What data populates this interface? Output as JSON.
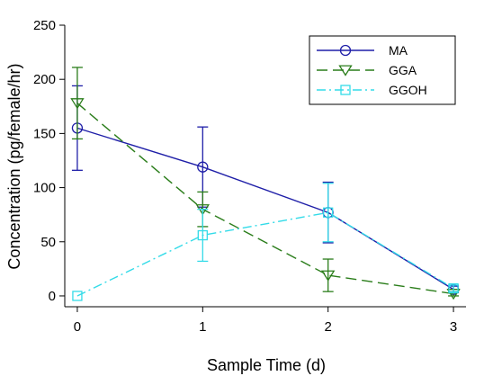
{
  "chart_data": {
    "type": "line",
    "title": "",
    "xlabel": "Sample Time (d)",
    "ylabel": "Concentration (pg/female/hr)",
    "xlim": [
      -0.1,
      3.1
    ],
    "ylim": [
      -10,
      250
    ],
    "xticks": [
      0,
      1,
      2,
      3
    ],
    "yticks": [
      0,
      50,
      100,
      150,
      200,
      250
    ],
    "grid": false,
    "legend_position": "top-right",
    "x": [
      0,
      1,
      2,
      3
    ],
    "series": [
      {
        "name": "MA",
        "values": [
          155,
          119,
          77,
          6
        ],
        "error": [
          39,
          37,
          28,
          3
        ],
        "color": "#1f1fa8",
        "linestyle": "solid",
        "marker": "circle"
      },
      {
        "name": "GGA",
        "values": [
          178,
          80,
          19,
          2
        ],
        "error": [
          33,
          16,
          15,
          2
        ],
        "color": "#2a7d1a",
        "linestyle": "dashed",
        "marker": "triangle-down"
      },
      {
        "name": "GGOH",
        "values": [
          0,
          56,
          77,
          7
        ],
        "error": [
          0,
          24,
          27,
          3
        ],
        "color": "#33dbe8",
        "linestyle": "dash-dot",
        "marker": "square"
      }
    ]
  }
}
